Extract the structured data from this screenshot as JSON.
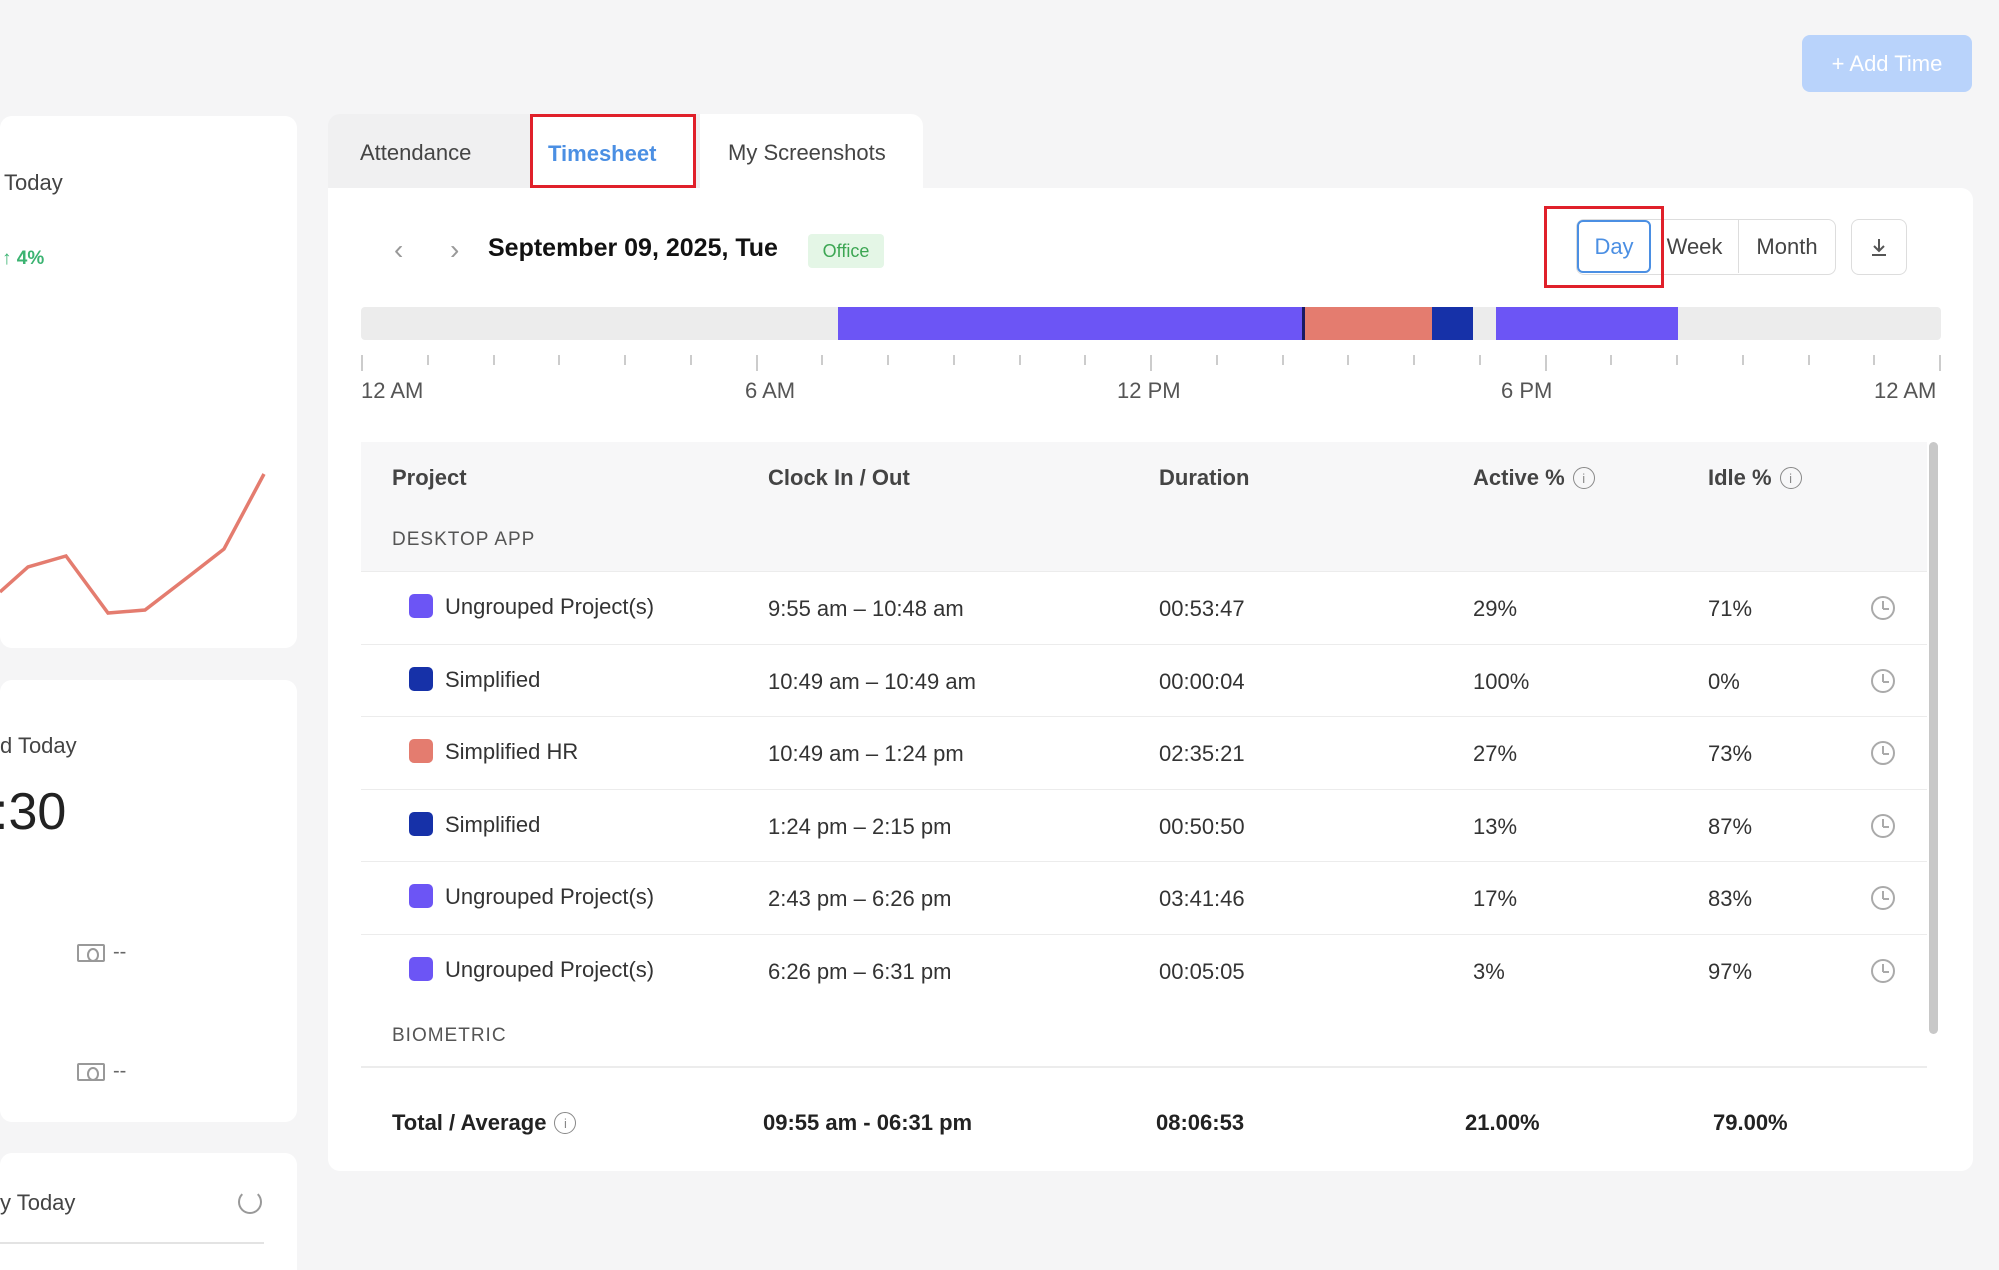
{
  "left_cards": {
    "card1_title": "Today",
    "card1_change": "↑ 4%",
    "card2_title": "d Today",
    "card2_value": ":30",
    "money_value_1": "--",
    "money_value_2": "--",
    "card3_title": "y Today"
  },
  "header": {
    "add_time_label": "+ Add Time"
  },
  "tabs": [
    {
      "label": "Attendance"
    },
    {
      "label": "Timesheet"
    },
    {
      "label": "My Screenshots"
    }
  ],
  "date_nav": {
    "prev": "‹",
    "next": "›",
    "date": "September 09, 2025, Tue",
    "badge": "Office"
  },
  "view_toggle": {
    "day": "Day",
    "week": "Week",
    "month": "Month"
  },
  "timeline": {
    "labels": [
      "12 AM",
      "6 AM",
      "12 PM",
      "6 PM",
      "12 AM"
    ],
    "colors": {
      "ungrouped": "#6c55f5",
      "simplified": "#1631a8",
      "simplified_hr": "#e47c6f",
      "divider": "#1a1a60"
    }
  },
  "table": {
    "headers": {
      "project": "Project",
      "clock": "Clock In / Out",
      "duration": "Duration",
      "active": "Active %",
      "idle": "Idle %"
    },
    "groups": {
      "desktop": "DESKTOP APP",
      "biometric": "BIOMETRIC"
    },
    "rows": [
      {
        "project": "Ungrouped Project(s)",
        "color": "#6c55f5",
        "clock": "9:55 am – 10:48 am",
        "duration": "00:53:47",
        "active": "29%",
        "idle": "71%"
      },
      {
        "project": "Simplified",
        "color": "#1631a8",
        "clock": "10:49 am – 10:49 am",
        "duration": "00:00:04",
        "active": "100%",
        "idle": "0%"
      },
      {
        "project": "Simplified HR",
        "color": "#e47c6f",
        "clock": "10:49 am – 1:24 pm",
        "duration": "02:35:21",
        "active": "27%",
        "idle": "73%"
      },
      {
        "project": "Simplified",
        "color": "#1631a8",
        "clock": "1:24 pm – 2:15 pm",
        "duration": "00:50:50",
        "active": "13%",
        "idle": "87%"
      },
      {
        "project": "Ungrouped Project(s)",
        "color": "#6c55f5",
        "clock": "2:43 pm – 6:26 pm",
        "duration": "03:41:46",
        "active": "17%",
        "idle": "83%"
      },
      {
        "project": "Ungrouped Project(s)",
        "color": "#6c55f5",
        "clock": "6:26 pm – 6:31 pm",
        "duration": "00:05:05",
        "active": "3%",
        "idle": "97%"
      }
    ],
    "total": {
      "label": "Total / Average",
      "clock": "09:55 am - 06:31 pm",
      "duration": "08:06:53",
      "active": "21.00%",
      "idle": "79.00%"
    }
  }
}
